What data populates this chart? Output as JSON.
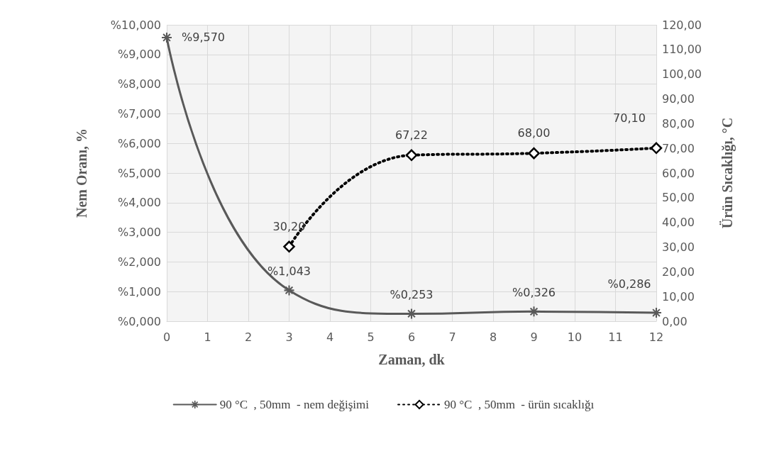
{
  "chart_data": {
    "type": "line",
    "xlabel": "Zaman, dk",
    "ylabel": "Nem Oranı, %",
    "y2label": "Ürün Sıcaklığı, °C",
    "xlim": [
      0,
      12
    ],
    "xticks": [
      0,
      1,
      2,
      3,
      4,
      5,
      6,
      7,
      8,
      9,
      10,
      11,
      12
    ],
    "ylim": [
      0,
      10
    ],
    "yticks": [
      {
        "value": 0,
        "label": "%0,000"
      },
      {
        "value": 1,
        "label": "%1,000"
      },
      {
        "value": 2,
        "label": "%2,000"
      },
      {
        "value": 3,
        "label": "%3,000"
      },
      {
        "value": 4,
        "label": "%4,000"
      },
      {
        "value": 5,
        "label": "%5,000"
      },
      {
        "value": 6,
        "label": "%6,000"
      },
      {
        "value": 7,
        "label": "%7,000"
      },
      {
        "value": 8,
        "label": "%8,000"
      },
      {
        "value": 9,
        "label": "%9,000"
      },
      {
        "value": 10,
        "label": "%10,000"
      }
    ],
    "y2lim": [
      0,
      120
    ],
    "y2ticks": [
      {
        "value": 0,
        "label": "0,00"
      },
      {
        "value": 10,
        "label": "10,00"
      },
      {
        "value": 20,
        "label": "20,00"
      },
      {
        "value": 30,
        "label": "30,00"
      },
      {
        "value": 40,
        "label": "40,00"
      },
      {
        "value": 50,
        "label": "50,00"
      },
      {
        "value": 60,
        "label": "60,00"
      },
      {
        "value": 70,
        "label": "70,00"
      },
      {
        "value": 80,
        "label": "80,00"
      },
      {
        "value": 90,
        "label": "90,00"
      },
      {
        "value": 100,
        "label": "100,00"
      },
      {
        "value": 110,
        "label": "110,00"
      },
      {
        "value": 120,
        "label": "120,00"
      }
    ],
    "grid": true,
    "legend": "bottom",
    "series": [
      {
        "name": "90 °C  , 50mm  - nem değişimi",
        "color": "#595959",
        "marker": "cross",
        "line_style": "solid",
        "x": [
          0,
          3,
          6,
          9,
          12
        ],
        "values": [
          9.57,
          1.043,
          0.253,
          0.326,
          0.286
        ],
        "value_labels": [
          "%9,570",
          "%1,043",
          "%0,253",
          "%0,326",
          "%0,286"
        ]
      },
      {
        "name": "90 °C  , 50mm  - ürün sıcaklığı",
        "color": "#000000",
        "marker": "diamond",
        "line_style": "dotted",
        "axis": "y2",
        "x": [
          3,
          6,
          9,
          12
        ],
        "values": [
          30.2,
          67.22,
          68.0,
          70.1
        ],
        "value_labels": [
          "30,20",
          "67,22",
          "68,00",
          "70,10"
        ]
      }
    ]
  }
}
